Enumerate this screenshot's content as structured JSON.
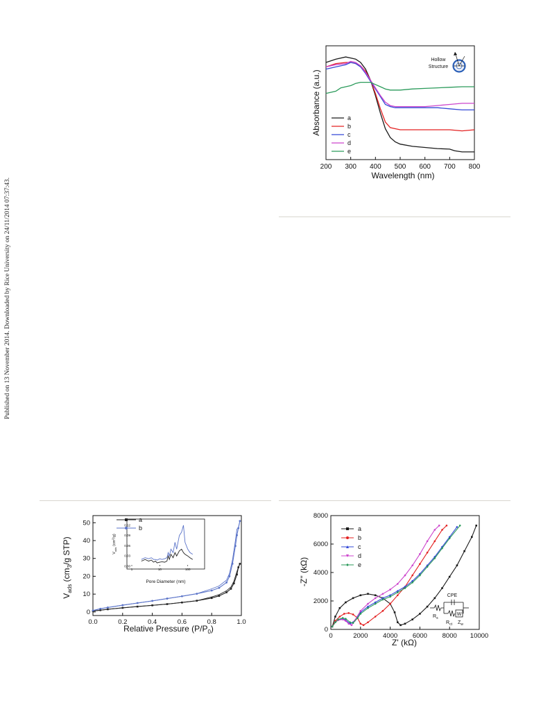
{
  "margin_note": "Published on 13 November 2014. Downloaded by Rice University on 24/11/2014 07:37:43.",
  "chart_data": [
    {
      "id": "uv_vis",
      "type": "line",
      "xlabel": "Wavelength (nm)",
      "ylabel": "Absorbance (a.u.)",
      "xlim": [
        200,
        800
      ],
      "xticks": [
        "200",
        "300",
        "400",
        "500",
        "600",
        "700",
        "800"
      ],
      "inset_label": [
        "Hollow",
        "Structure"
      ],
      "legend_position": "bottom-left",
      "series": [
        {
          "name": "a",
          "color": "#1a1a1a",
          "x": [
            200,
            240,
            280,
            300,
            320,
            340,
            360,
            380,
            400,
            420,
            440,
            460,
            480,
            500,
            550,
            600,
            650,
            700,
            720,
            750,
            800
          ],
          "y": [
            0.88,
            0.91,
            0.93,
            0.92,
            0.91,
            0.88,
            0.82,
            0.72,
            0.58,
            0.42,
            0.28,
            0.2,
            0.16,
            0.14,
            0.12,
            0.11,
            0.1,
            0.095,
            0.08,
            0.07,
            0.07
          ]
        },
        {
          "name": "b",
          "color": "#e32020",
          "x": [
            200,
            240,
            280,
            300,
            320,
            340,
            360,
            380,
            400,
            420,
            440,
            460,
            480,
            500,
            550,
            600,
            650,
            700,
            750,
            800
          ],
          "y": [
            0.84,
            0.87,
            0.88,
            0.88,
            0.87,
            0.85,
            0.8,
            0.72,
            0.6,
            0.46,
            0.34,
            0.29,
            0.28,
            0.27,
            0.27,
            0.27,
            0.27,
            0.27,
            0.26,
            0.27
          ]
        },
        {
          "name": "c",
          "color": "#3348d6",
          "x": [
            200,
            240,
            280,
            300,
            320,
            340,
            360,
            380,
            400,
            420,
            440,
            460,
            480,
            500,
            550,
            600,
            650,
            700,
            750,
            800
          ],
          "y": [
            0.82,
            0.84,
            0.86,
            0.88,
            0.87,
            0.84,
            0.78,
            0.71,
            0.64,
            0.57,
            0.5,
            0.48,
            0.47,
            0.47,
            0.47,
            0.47,
            0.47,
            0.46,
            0.45,
            0.45
          ]
        },
        {
          "name": "d",
          "color": "#cc44cc",
          "x": [
            200,
            240,
            280,
            300,
            320,
            340,
            360,
            380,
            400,
            420,
            440,
            460,
            480,
            500,
            550,
            600,
            650,
            700,
            750,
            800
          ],
          "y": [
            0.84,
            0.86,
            0.87,
            0.89,
            0.88,
            0.85,
            0.79,
            0.72,
            0.65,
            0.58,
            0.52,
            0.49,
            0.48,
            0.48,
            0.48,
            0.48,
            0.49,
            0.5,
            0.51,
            0.51
          ]
        },
        {
          "name": "e",
          "color": "#2a9a5a",
          "x": [
            200,
            240,
            260,
            280,
            300,
            320,
            340,
            360,
            380,
            400,
            420,
            440,
            460,
            500,
            550,
            600,
            650,
            700,
            750,
            800
          ],
          "y": [
            0.6,
            0.62,
            0.65,
            0.66,
            0.67,
            0.69,
            0.7,
            0.7,
            0.7,
            0.68,
            0.66,
            0.64,
            0.63,
            0.63,
            0.64,
            0.645,
            0.65,
            0.655,
            0.66,
            0.66
          ]
        }
      ]
    },
    {
      "id": "bet",
      "type": "line",
      "xlabel": "Relative Pressure (P/P",
      "xlabel_sub": "0",
      "xlabel_end": ")",
      "ylabel": "V",
      "ylabel_sub": "ads",
      "ylabel_end": " (cm",
      "ylabel_sub2": "3",
      "ylabel_end2": "/g STP)",
      "xlim": [
        0,
        1
      ],
      "ylim": [
        -2,
        54
      ],
      "xticks": [
        0,
        0.2,
        0.4,
        0.6,
        0.8,
        1.0
      ],
      "xtick_labels": [
        "0.0",
        "0.2",
        "0.4",
        "0.6",
        "0.8",
        "1.0"
      ],
      "yticks": [
        0,
        10,
        20,
        30,
        40,
        50
      ],
      "ytick_labels": [
        "0",
        "10",
        "20",
        "30",
        "40",
        "50"
      ],
      "series": [
        {
          "name": "a",
          "color": "#222222",
          "x": [
            0.0,
            0.05,
            0.1,
            0.2,
            0.3,
            0.4,
            0.5,
            0.6,
            0.7,
            0.8,
            0.85,
            0.9,
            0.93,
            0.95,
            0.97,
            0.98,
            0.99
          ],
          "y": [
            0.5,
            1.0,
            1.5,
            2.3,
            3.0,
            3.7,
            4.4,
            5.3,
            6.3,
            7.8,
            9.0,
            11.0,
            13.0,
            16.0,
            21.0,
            25.0,
            27.0
          ]
        },
        {
          "name": "b",
          "color": "#5a73c8",
          "x": [
            0.0,
            0.05,
            0.1,
            0.2,
            0.3,
            0.4,
            0.5,
            0.6,
            0.7,
            0.8,
            0.85,
            0.9,
            0.92,
            0.94,
            0.96,
            0.97,
            0.98,
            0.99
          ],
          "y": [
            0.8,
            1.8,
            2.5,
            3.8,
            5.0,
            6.2,
            7.5,
            8.8,
            10.2,
            12.0,
            13.5,
            16.5,
            20.0,
            27.0,
            37.0,
            43.0,
            47.0,
            51.0
          ]
        }
      ],
      "inset": {
        "xlabel": "Pore Diameter (nm)",
        "ylabel": "V",
        "ylabel_sub": "ads",
        "ylabel_end": " (cm",
        "ylabel_sub2": "3",
        "ylabel_end2": "/g)",
        "xscale": "log",
        "xlim": [
          1,
          300
        ],
        "ylim": [
          0,
          0.13
        ],
        "xtick_labels": [
          "1",
          "10",
          "100"
        ],
        "ytick_labels": [
          "0.00",
          "0.03",
          "0.06",
          "0.09",
          "0.12"
        ],
        "series": [
          {
            "name": "a",
            "color": "#222222",
            "x": [
              2.2,
              3,
              4,
              5,
              6,
              7,
              8,
              10,
              12,
              15,
              18,
              20,
              22,
              25,
              30,
              35,
              40,
              50,
              60,
              70,
              80,
              100,
              120,
              150
            ],
            "y": [
              0.015,
              0.02,
              0.015,
              0.018,
              0.012,
              0.015,
              0.01,
              0.012,
              0.013,
              0.012,
              0.015,
              0.03,
              0.02,
              0.035,
              0.025,
              0.04,
              0.03,
              0.045,
              0.05,
              0.04,
              0.035,
              0.03,
              0.025,
              0.02
            ]
          },
          {
            "name": "b",
            "color": "#5a73c8",
            "x": [
              2.2,
              3,
              4,
              5,
              6,
              7,
              8,
              10,
              12,
              15,
              18,
              20,
              22,
              25,
              30,
              35,
              40,
              50,
              60,
              70,
              80,
              100,
              120,
              150
            ],
            "y": [
              0.02,
              0.025,
              0.022,
              0.025,
              0.02,
              0.02,
              0.018,
              0.022,
              0.02,
              0.022,
              0.025,
              0.04,
              0.03,
              0.05,
              0.04,
              0.07,
              0.05,
              0.09,
              0.1,
              0.12,
              0.07,
              0.05,
              0.04,
              0.035
            ]
          }
        ]
      }
    },
    {
      "id": "eis",
      "type": "scatter",
      "xlabel": "Z' (kΩ)",
      "ylabel": "-Z'' (kΩ)",
      "xlim": [
        0,
        10000
      ],
      "ylim": [
        0,
        8000
      ],
      "xticks": [
        0,
        2000,
        4000,
        6000,
        8000,
        10000
      ],
      "xtick_labels": [
        "0",
        "2000",
        "4000",
        "6000",
        "8000",
        "10000"
      ],
      "yticks": [
        0,
        2000,
        4000,
        6000,
        8000
      ],
      "ytick_labels": [
        "0",
        "2000",
        "4000",
        "6000",
        "8000"
      ],
      "circuit_labels": {
        "cpe": "CPE",
        "rs": "R",
        "rs_sub": "s",
        "rct": "R",
        "rct_sub": "ct",
        "zw": "Z",
        "zw_sub": "w",
        "w": "W"
      },
      "series": [
        {
          "name": "a",
          "color": "#1a1a1a",
          "x": [
            100,
            300,
            600,
            1000,
            1500,
            2000,
            2500,
            3000,
            3500,
            4000,
            4300,
            4500,
            4700,
            5000,
            5500,
            6000,
            6500,
            7000,
            7500,
            8000,
            8500,
            9000,
            9500,
            9800
          ],
          "y": [
            200,
            900,
            1500,
            1900,
            2200,
            2400,
            2500,
            2400,
            2200,
            1800,
            1200,
            500,
            300,
            400,
            700,
            1100,
            1600,
            2200,
            2900,
            3700,
            4500,
            5500,
            6500,
            7300
          ]
        },
        {
          "name": "b",
          "color": "#e32020",
          "x": [
            100,
            300,
            600,
            900,
            1200,
            1500,
            1800,
            2000,
            2200,
            2500,
            3000,
            3500,
            4000,
            4500,
            5000,
            5500,
            6000,
            6500,
            7000,
            7500,
            7800
          ],
          "y": [
            200,
            600,
            900,
            1100,
            1150,
            1050,
            800,
            400,
            300,
            500,
            900,
            1300,
            1800,
            2400,
            3000,
            3800,
            4600,
            5400,
            6200,
            7000,
            7300
          ]
        },
        {
          "name": "c",
          "color": "#3348d6",
          "x": [
            100,
            300,
            500,
            800,
            1000,
            1300,
            1500,
            1800,
            2000,
            2500,
            3000,
            3500,
            4000,
            4500,
            5000,
            5500,
            6000,
            6500,
            7000,
            7500,
            8000,
            8500
          ],
          "y": [
            200,
            500,
            700,
            750,
            650,
            400,
            500,
            900,
            1200,
            1600,
            1900,
            2200,
            2400,
            2700,
            3000,
            3400,
            3900,
            4500,
            5100,
            5800,
            6500,
            7200
          ]
        },
        {
          "name": "d",
          "color": "#cc44cc",
          "x": [
            100,
            300,
            500,
            800,
            1000,
            1200,
            1400,
            1600,
            2000,
            2500,
            3000,
            3500,
            4000,
            4500,
            5000,
            5500,
            6000,
            6500,
            7000,
            7300
          ],
          "y": [
            200,
            500,
            650,
            700,
            600,
            400,
            300,
            600,
            1300,
            1800,
            2200,
            2500,
            2800,
            3200,
            3800,
            4500,
            5300,
            6200,
            7000,
            7300
          ]
        },
        {
          "name": "e",
          "color": "#2a9a5a",
          "x": [
            100,
            300,
            500,
            800,
            1000,
            1300,
            1500,
            1800,
            2000,
            2500,
            3000,
            3500,
            4000,
            4500,
            5000,
            5500,
            6000,
            6500,
            7000,
            7500,
            8000,
            8700
          ],
          "y": [
            200,
            500,
            700,
            800,
            750,
            500,
            450,
            800,
            1100,
            1500,
            1800,
            2100,
            2300,
            2600,
            2900,
            3300,
            3800,
            4400,
            5000,
            5700,
            6400,
            7300
          ]
        }
      ]
    }
  ]
}
